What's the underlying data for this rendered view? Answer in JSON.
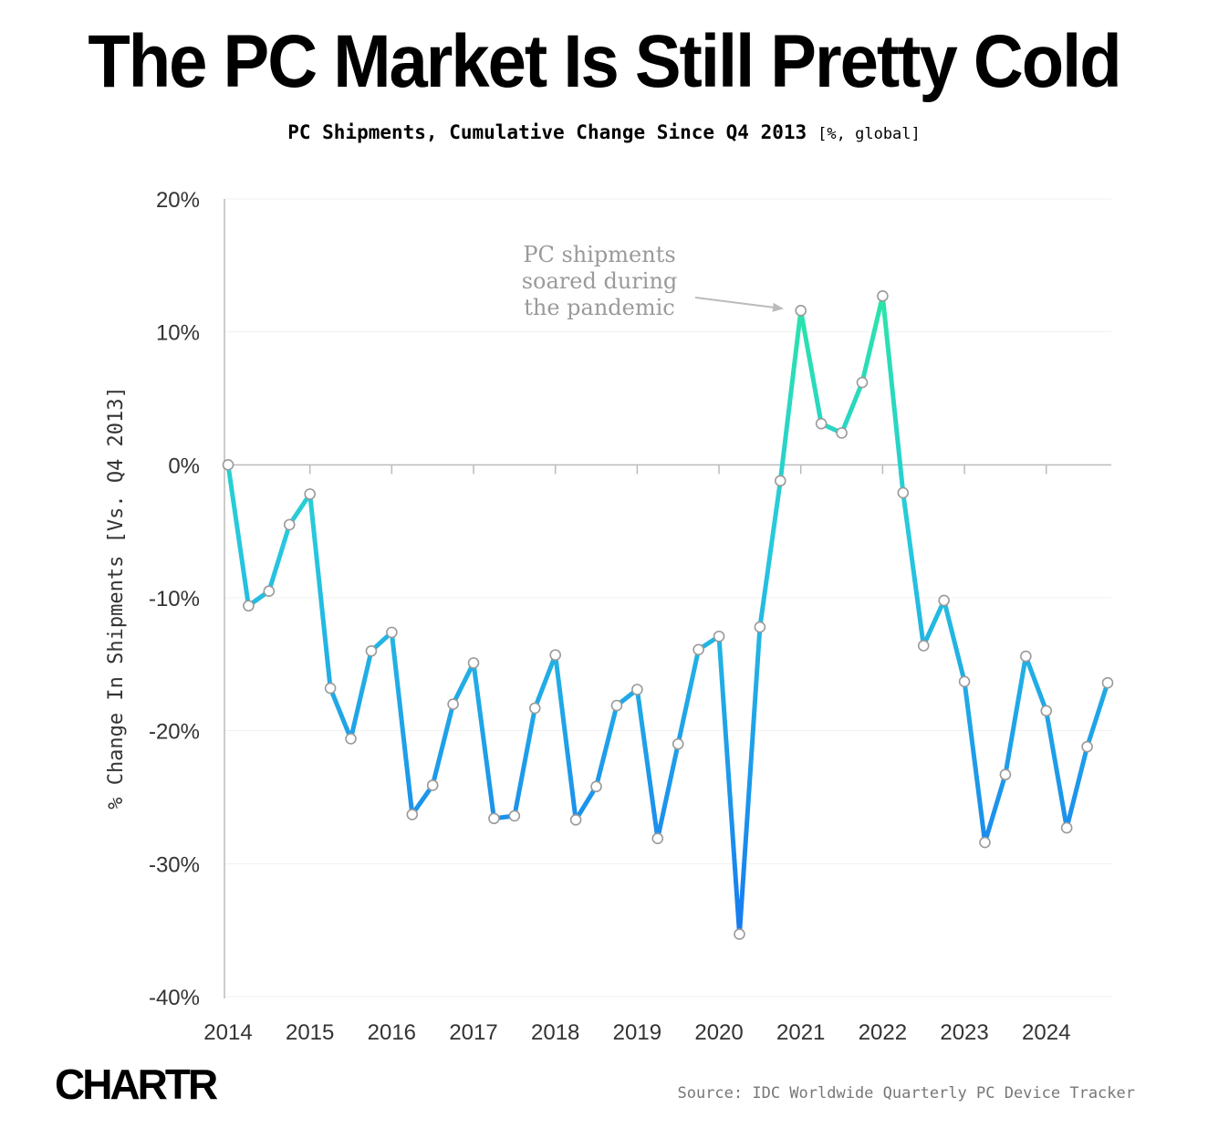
{
  "chart_data": {
    "type": "line",
    "title": "The PC Market Is Still Pretty Cold",
    "subtitle": "PC Shipments, Cumulative Change Since Q4 2013",
    "subtitle_unit": "[%, global]",
    "ylabel": "% Change In Shipments [Vs. Q4 2013]",
    "xlabel": "",
    "ylim": [
      -40,
      20
    ],
    "yticks": [
      20,
      10,
      0,
      -10,
      -20,
      -30,
      -40
    ],
    "ytick_labels": [
      "20%",
      "10%",
      "0%",
      "-10%",
      "-20%",
      "-30%",
      "-40%"
    ],
    "xlim": [
      2014,
      2024.75
    ],
    "xticks": [
      2014,
      2015,
      2016,
      2017,
      2018,
      2019,
      2020,
      2021,
      2022,
      2023,
      2024
    ],
    "xtick_labels": [
      "2014",
      "2015",
      "2016",
      "2017",
      "2018",
      "2019",
      "2020",
      "2021",
      "2022",
      "2023",
      "2024"
    ],
    "grid": true,
    "x": [
      2014,
      2014.25,
      2014.5,
      2014.75,
      2015,
      2015.25,
      2015.5,
      2015.75,
      2016,
      2016.25,
      2016.5,
      2016.75,
      2017,
      2017.25,
      2017.5,
      2017.75,
      2018,
      2018.25,
      2018.5,
      2018.75,
      2019,
      2019.25,
      2019.5,
      2019.75,
      2020,
      2020.25,
      2020.5,
      2020.75,
      2021,
      2021.25,
      2021.5,
      2021.75,
      2022,
      2022.25,
      2022.5,
      2022.75,
      2023,
      2023.25,
      2023.5,
      2023.75,
      2024,
      2024.25,
      2024.5,
      2024.75
    ],
    "series": [
      {
        "name": "PC Shipments",
        "values": [
          0,
          -10.6,
          -9.5,
          -4.5,
          -2.2,
          -16.8,
          -20.6,
          -14.0,
          -12.6,
          -26.3,
          -24.1,
          -18.0,
          -14.9,
          -26.6,
          -26.4,
          -18.3,
          -14.3,
          -26.7,
          -24.2,
          -18.1,
          -16.9,
          -28.1,
          -21.0,
          -13.9,
          -12.9,
          -35.3,
          -12.2,
          -1.2,
          11.6,
          3.1,
          2.4,
          6.2,
          12.7,
          -2.1,
          -13.6,
          -10.2,
          -16.3,
          -28.4,
          -23.3,
          -14.4,
          -18.5,
          -27.3,
          -21.2,
          -16.4
        ]
      }
    ],
    "annotation": {
      "lines": [
        "PC shipments",
        "soared during",
        "the pandemic"
      ],
      "points_to_x": 2020.75
    },
    "colors": {
      "line_high": "#2be8a2",
      "line_mid": "#27c8de",
      "line_low": "#1677f2",
      "marker_fill": "#ffffff",
      "marker_stroke": "#9a9a9a",
      "axis": "#bbbbbb",
      "grid": "#f1f1f1",
      "annotation": "#9a9a9a"
    }
  },
  "branding": {
    "logo": "CHARTR",
    "source": "Source: IDC Worldwide Quarterly PC Device Tracker"
  }
}
